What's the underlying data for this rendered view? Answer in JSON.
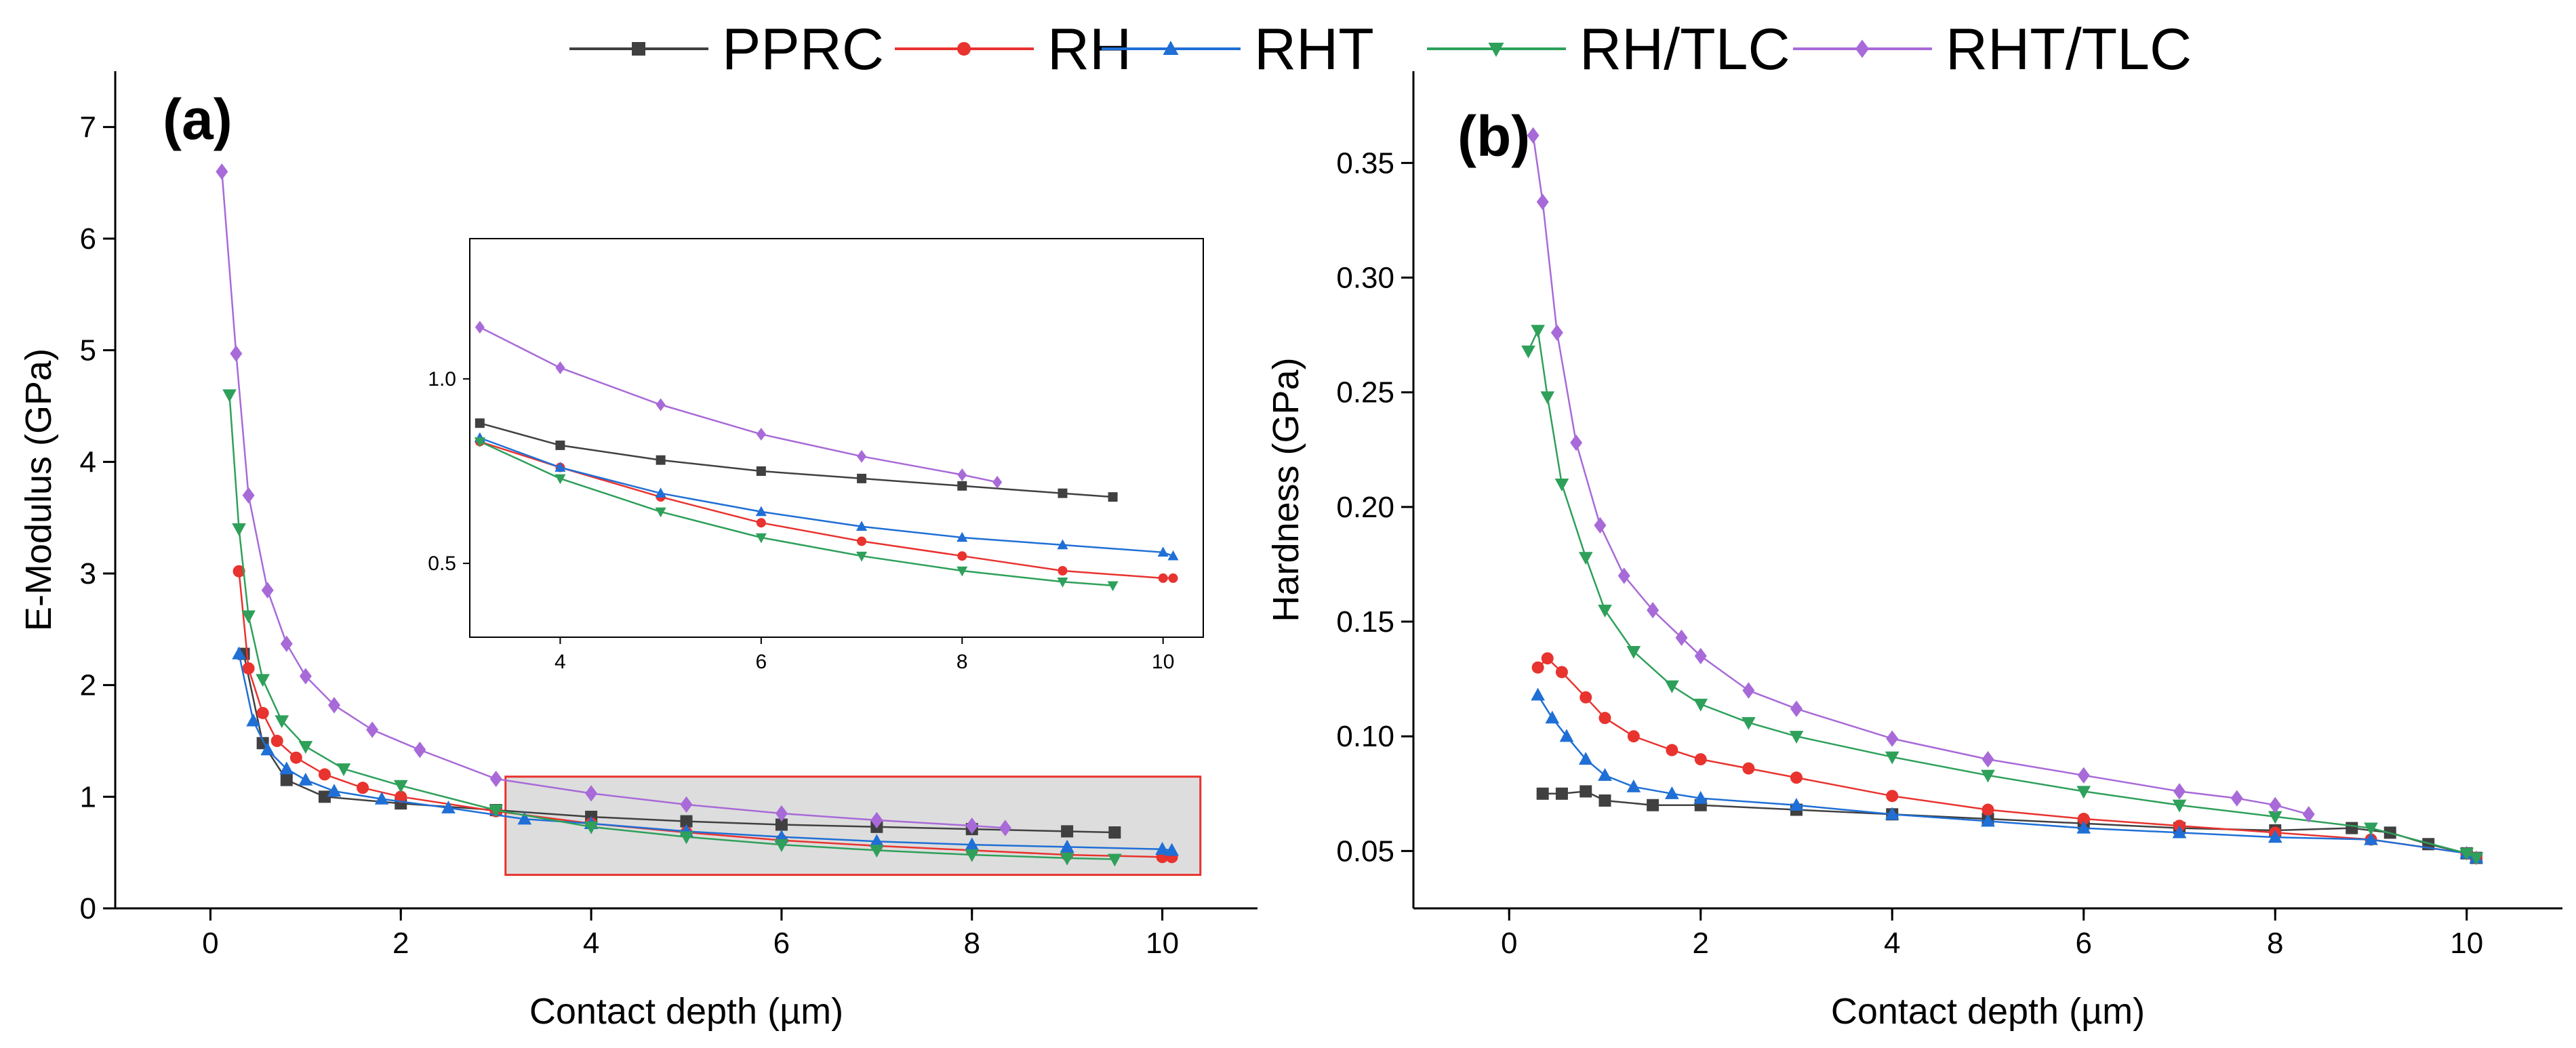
{
  "figure": {
    "legend": [
      {
        "name": "PPRC",
        "color": "#404040",
        "marker": "square"
      },
      {
        "name": "RH",
        "color": "#e8332f",
        "marker": "circle"
      },
      {
        "name": "RHT",
        "color": "#1f6fd6",
        "marker": "triangle-up"
      },
      {
        "name": "RH/TLC",
        "color": "#2ea05a",
        "marker": "triangle-down"
      },
      {
        "name": "RHT/TLC",
        "color": "#a86ad8",
        "marker": "diamond"
      }
    ]
  },
  "chart_data": [
    {
      "type": "line",
      "panel_label": "(a)",
      "xlabel": "Contact depth (µm)",
      "ylabel": "E-Modulus (GPa)",
      "xlim": [
        -1,
        11
      ],
      "ylim": [
        0,
        7.5
      ],
      "xticks": [
        0,
        2,
        4,
        6,
        8,
        10
      ],
      "yticks": [
        0,
        1,
        2,
        3,
        4,
        5,
        6,
        7
      ],
      "highlight_box": {
        "x": [
          3.1,
          10.4
        ],
        "y": [
          0.3,
          1.18
        ]
      },
      "series": [
        {
          "name": "PPRC",
          "x": [
            0.35,
            0.55,
            0.8,
            1.2,
            2.0,
            3.0,
            4.0,
            5.0,
            6.0,
            7.0,
            8.0,
            9.0,
            9.5
          ],
          "y": [
            2.28,
            1.48,
            1.15,
            1.0,
            0.94,
            0.88,
            0.82,
            0.78,
            0.75,
            0.73,
            0.71,
            0.69,
            0.68
          ]
        },
        {
          "name": "RH",
          "x": [
            0.3,
            0.4,
            0.55,
            0.7,
            0.9,
            1.2,
            1.6,
            2.0,
            3.0,
            4.0,
            5.0,
            6.0,
            7.0,
            8.0,
            9.0,
            10.0,
            10.1
          ],
          "y": [
            3.02,
            2.15,
            1.75,
            1.5,
            1.35,
            1.2,
            1.08,
            1.0,
            0.87,
            0.76,
            0.68,
            0.61,
            0.56,
            0.52,
            0.48,
            0.46,
            0.46
          ]
        },
        {
          "name": "RHT",
          "x": [
            0.3,
            0.45,
            0.6,
            0.8,
            1.0,
            1.3,
            1.8,
            2.5,
            3.3,
            4.0,
            5.0,
            6.0,
            7.0,
            8.0,
            9.0,
            10.0,
            10.1
          ],
          "y": [
            2.28,
            1.68,
            1.42,
            1.25,
            1.15,
            1.05,
            0.98,
            0.9,
            0.8,
            0.76,
            0.69,
            0.64,
            0.6,
            0.57,
            0.55,
            0.53,
            0.52
          ]
        },
        {
          "name": "RH/TLC",
          "x": [
            0.2,
            0.3,
            0.4,
            0.55,
            0.75,
            1.0,
            1.4,
            2.0,
            3.0,
            4.0,
            5.0,
            6.0,
            7.0,
            8.0,
            9.0,
            9.5
          ],
          "y": [
            4.6,
            3.4,
            2.62,
            2.05,
            1.68,
            1.45,
            1.25,
            1.1,
            0.88,
            0.73,
            0.64,
            0.57,
            0.52,
            0.48,
            0.45,
            0.44
          ]
        },
        {
          "name": "RHT/TLC",
          "x": [
            0.12,
            0.27,
            0.4,
            0.6,
            0.8,
            1.0,
            1.3,
            1.7,
            2.2,
            3.0,
            4.0,
            5.0,
            6.0,
            7.0,
            8.0,
            8.35
          ],
          "y": [
            6.6,
            4.97,
            3.7,
            2.85,
            2.37,
            2.08,
            1.82,
            1.6,
            1.42,
            1.16,
            1.03,
            0.93,
            0.85,
            0.79,
            0.74,
            0.72
          ]
        }
      ]
    },
    {
      "type": "line",
      "panel_label": "(b)",
      "xlabel": "Contact depth (µm)",
      "ylabel": "Hardness (GPa)",
      "xlim": [
        -1,
        11
      ],
      "ylim": [
        0.025,
        0.39
      ],
      "xticks": [
        0,
        2,
        4,
        6,
        8,
        10
      ],
      "yticks": [
        0.05,
        0.1,
        0.15,
        0.2,
        0.25,
        0.3,
        0.35
      ],
      "series": [
        {
          "name": "PPRC",
          "x": [
            0.35,
            0.55,
            0.8,
            1.0,
            1.5,
            2.0,
            3.0,
            4.0,
            5.0,
            6.0,
            7.0,
            8.0,
            8.8,
            9.2,
            9.6,
            10.0,
            10.1
          ],
          "y": [
            0.075,
            0.075,
            0.076,
            0.072,
            0.07,
            0.07,
            0.068,
            0.066,
            0.064,
            0.062,
            0.06,
            0.059,
            0.06,
            0.058,
            0.053,
            0.049,
            0.047
          ]
        },
        {
          "name": "RH",
          "x": [
            0.3,
            0.4,
            0.55,
            0.8,
            1.0,
            1.3,
            1.7,
            2.0,
            2.5,
            3.0,
            4.0,
            5.0,
            6.0,
            7.0,
            8.0,
            9.0,
            10.0,
            10.1
          ],
          "y": [
            0.13,
            0.134,
            0.128,
            0.117,
            0.108,
            0.1,
            0.094,
            0.09,
            0.086,
            0.082,
            0.074,
            0.068,
            0.064,
            0.061,
            0.058,
            0.055,
            0.049,
            0.047
          ]
        },
        {
          "name": "RHT",
          "x": [
            0.3,
            0.45,
            0.6,
            0.8,
            1.0,
            1.3,
            1.7,
            2.0,
            3.0,
            4.0,
            5.0,
            6.0,
            7.0,
            8.0,
            9.0,
            10.0,
            10.1
          ],
          "y": [
            0.118,
            0.108,
            0.1,
            0.09,
            0.083,
            0.078,
            0.075,
            0.073,
            0.07,
            0.066,
            0.063,
            0.06,
            0.058,
            0.056,
            0.055,
            0.049,
            0.047
          ]
        },
        {
          "name": "RH/TLC",
          "x": [
            0.2,
            0.3,
            0.4,
            0.55,
            0.8,
            1.0,
            1.3,
            1.7,
            2.0,
            2.5,
            3.0,
            4.0,
            5.0,
            6.0,
            7.0,
            8.0,
            9.0,
            10.0,
            10.1
          ],
          "y": [
            0.268,
            0.277,
            0.248,
            0.21,
            0.178,
            0.155,
            0.137,
            0.122,
            0.114,
            0.106,
            0.1,
            0.091,
            0.083,
            0.076,
            0.07,
            0.065,
            0.06,
            0.049,
            0.047
          ]
        },
        {
          "name": "RHT/TLC",
          "x": [
            0.25,
            0.35,
            0.5,
            0.7,
            0.95,
            1.2,
            1.5,
            1.8,
            2.0,
            2.5,
            3.0,
            4.0,
            5.0,
            6.0,
            7.0,
            7.6,
            8.0,
            8.35
          ],
          "y": [
            0.362,
            0.333,
            0.276,
            0.228,
            0.192,
            0.17,
            0.155,
            0.143,
            0.135,
            0.12,
            0.112,
            0.099,
            0.09,
            0.083,
            0.076,
            0.073,
            0.07,
            0.066
          ]
        }
      ]
    },
    {
      "type": "line",
      "panel_label": "inset",
      "xlim": [
        3.1,
        10.4
      ],
      "ylim": [
        0.3,
        1.38
      ],
      "xticks": [
        4,
        6,
        8,
        10
      ],
      "yticks": [
        0.5,
        1.0
      ],
      "ytick_labels": [
        "0.5",
        "1.0"
      ],
      "series": [
        {
          "name": "PPRC",
          "x": [
            3.2,
            4.0,
            5.0,
            6.0,
            7.0,
            8.0,
            9.0,
            9.5
          ],
          "y": [
            0.88,
            0.82,
            0.78,
            0.75,
            0.73,
            0.71,
            0.69,
            0.68
          ]
        },
        {
          "name": "RH",
          "x": [
            3.2,
            4.0,
            5.0,
            6.0,
            7.0,
            8.0,
            9.0,
            10.0,
            10.1
          ],
          "y": [
            0.83,
            0.76,
            0.68,
            0.61,
            0.56,
            0.52,
            0.48,
            0.46,
            0.46
          ]
        },
        {
          "name": "RHT",
          "x": [
            3.2,
            4.0,
            5.0,
            6.0,
            7.0,
            8.0,
            9.0,
            10.0,
            10.1
          ],
          "y": [
            0.84,
            0.76,
            0.69,
            0.64,
            0.6,
            0.57,
            0.55,
            0.53,
            0.52
          ]
        },
        {
          "name": "RH/TLC",
          "x": [
            3.2,
            4.0,
            5.0,
            6.0,
            7.0,
            8.0,
            9.0,
            9.5
          ],
          "y": [
            0.83,
            0.73,
            0.64,
            0.57,
            0.52,
            0.48,
            0.45,
            0.44
          ]
        },
        {
          "name": "RHT/TLC",
          "x": [
            3.2,
            4.0,
            5.0,
            6.0,
            7.0,
            8.0,
            8.35
          ],
          "y": [
            1.14,
            1.03,
            0.93,
            0.85,
            0.79,
            0.74,
            0.72
          ]
        }
      ]
    }
  ]
}
